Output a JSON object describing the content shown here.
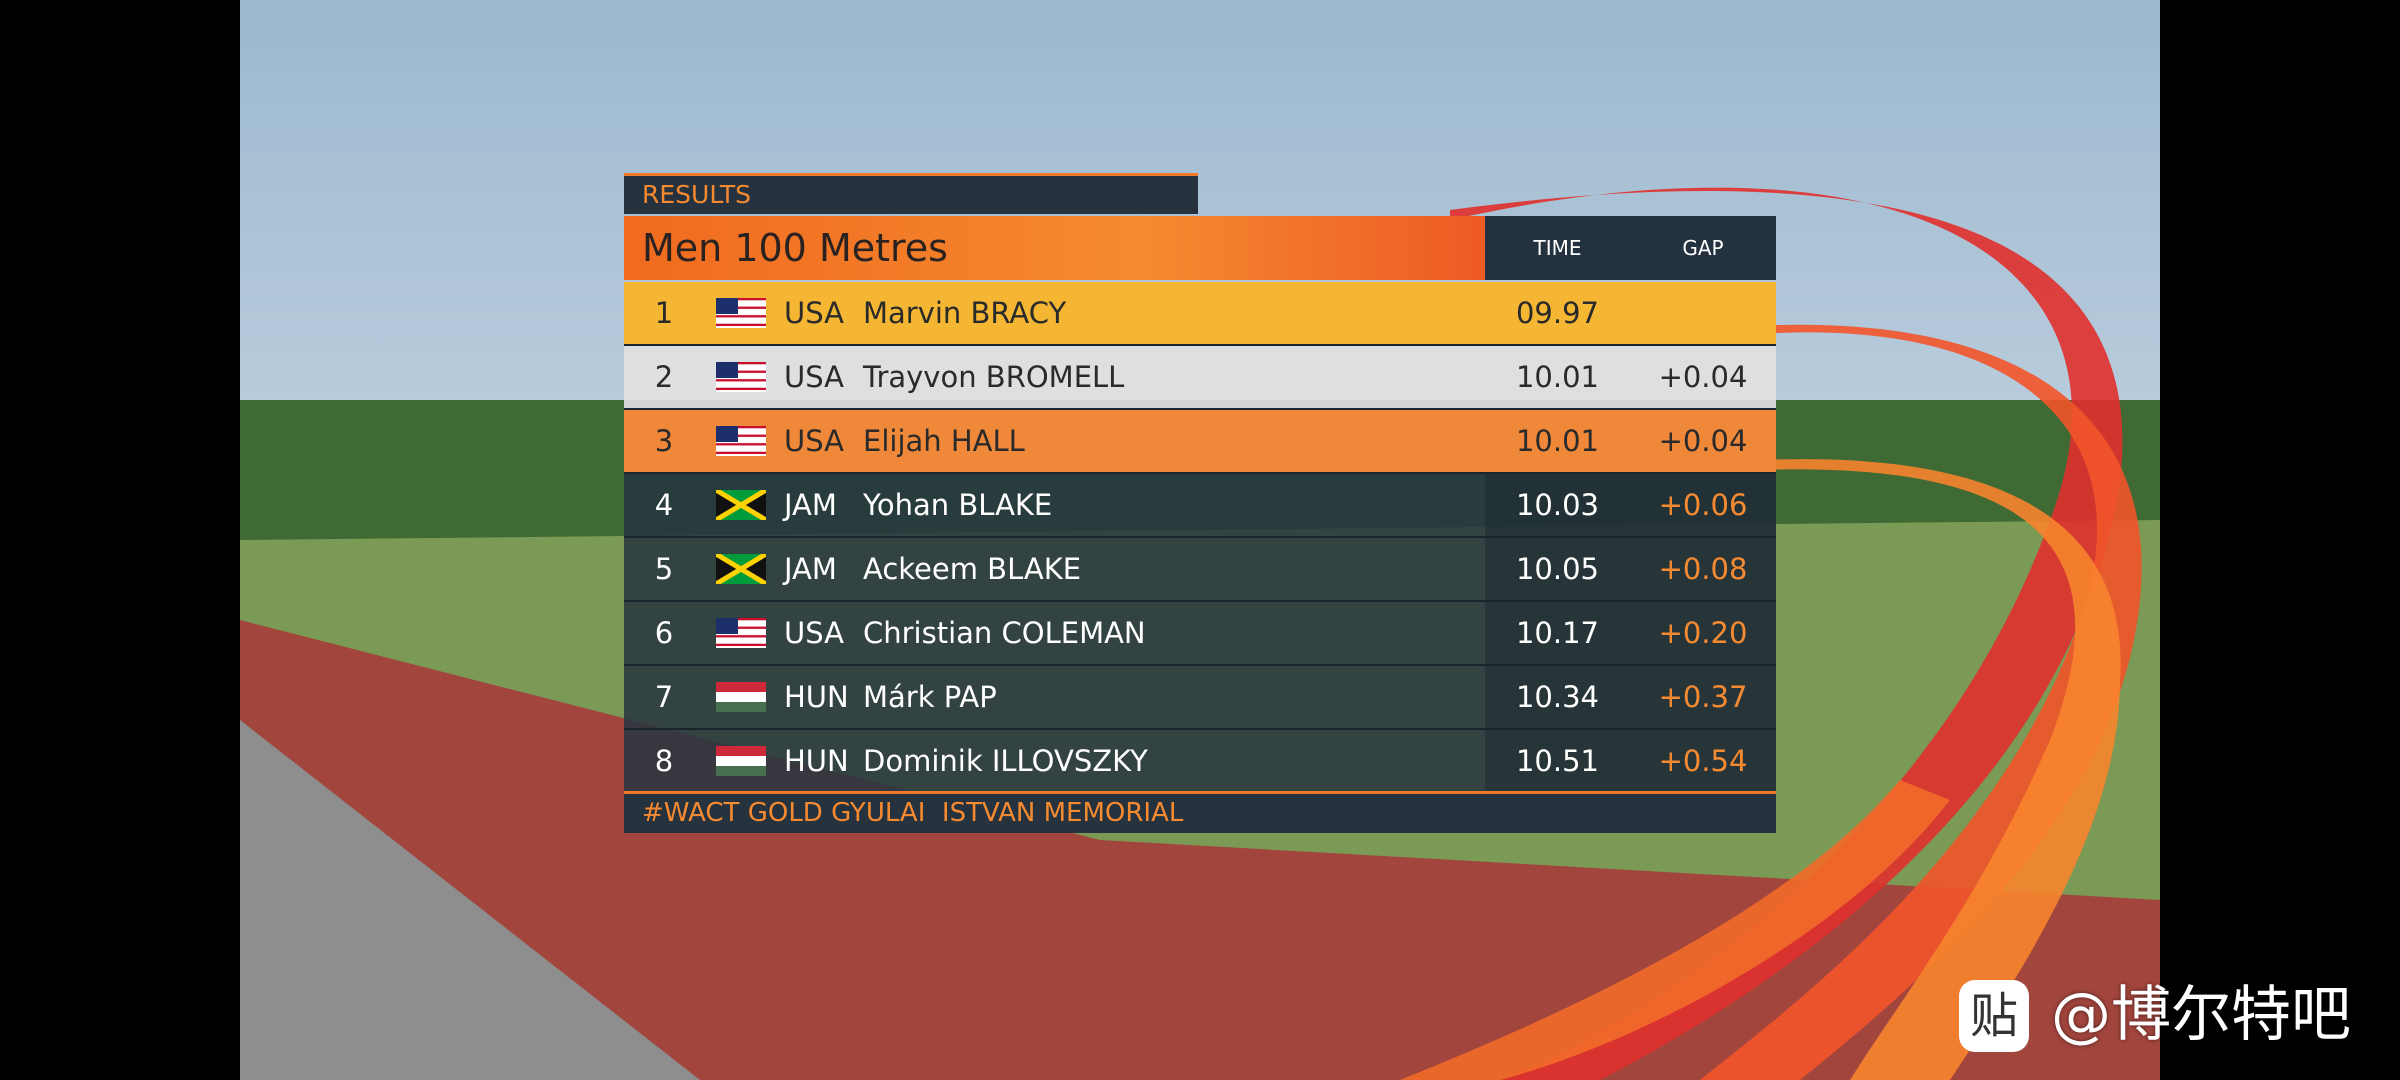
{
  "header": {
    "section": "RESULTS",
    "title": "Men 100 Metres",
    "columns": [
      "TIME",
      "GAP"
    ]
  },
  "rows": [
    {
      "rank": "1",
      "country": "USA",
      "name": "Marvin BRACY",
      "time": "09.97"
    },
    {
      "rank": "2",
      "country": "USA",
      "name": "Trayvon BROMELL",
      "time": "10.01",
      "gap": "+0.04"
    },
    {
      "rank": "3",
      "country": "USA",
      "name": "Elijah HALL",
      "time": "10.01",
      "gap": "+0.04"
    },
    {
      "rank": "4",
      "country": "JAM",
      "name": "Yohan BLAKE",
      "time": "10.03",
      "gap": "+0.06"
    },
    {
      "rank": "5",
      "country": "JAM",
      "name": "Ackeem BLAKE",
      "time": "10.05",
      "gap": "+0.08"
    },
    {
      "rank": "6",
      "country": "USA",
      "name": "Christian COLEMAN",
      "time": "10.17",
      "gap": "+0.20"
    },
    {
      "rank": "7",
      "country": "HUN",
      "name": "Márk PAP",
      "time": "10.34",
      "gap": "+0.37"
    },
    {
      "rank": "8",
      "country": "HUN",
      "name": "Dominik ILLOVSZKY",
      "time": "10.51",
      "gap": "+0.54"
    }
  ],
  "footer": "#WACT GOLD GYULAI  ISTVAN MEMORIAL",
  "watermark": {
    "logo": "贴",
    "text": "@博尔特吧"
  }
}
